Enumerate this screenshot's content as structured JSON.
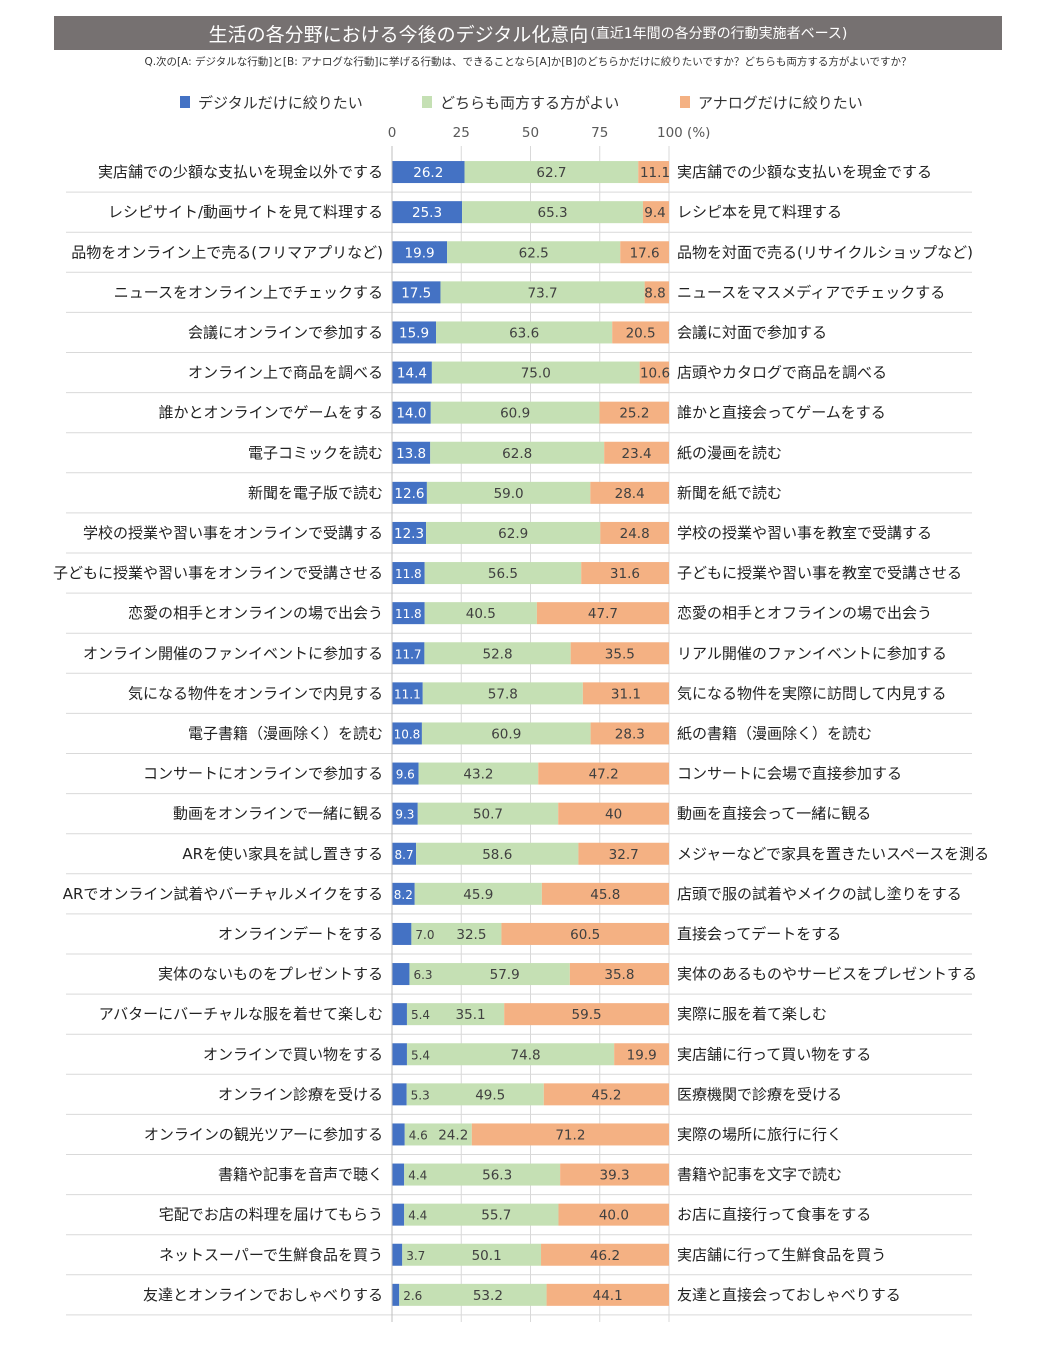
{
  "title": "生活の各分野における今後のデジタル化意向",
  "subtitle": "(直近1年間の各分野の行動実施者ベース)",
  "question": "Q.次の[A: デジタルな行動]と[B: アナログな行動]に挙げる行動は、できることなら[A]か[B]のどちらかだけに絞りたいですか？どちらも両方する方がよいですか？",
  "colors": {
    "digital": "#4472C4",
    "both": "#C5E0B4",
    "analog": "#F4B183",
    "title_bg": "#767171"
  },
  "legend": [
    {
      "label": "デジタルだけに絞りたい",
      "color": "#4472C4"
    },
    {
      "label": "どちらも両方する方がよい",
      "color": "#C5E0B4"
    },
    {
      "label": "アナログだけに絞りたい",
      "color": "#F4B183"
    }
  ],
  "chart_data": {
    "type": "bar",
    "stacked": true,
    "orientation": "horizontal",
    "title": "生活の各分野における今後のデジタル化意向",
    "xlim": [
      0,
      100
    ],
    "x_ticks": [
      "0",
      "25",
      "50",
      "75",
      "100 (%)"
    ],
    "series_names": [
      "デジタルだけに絞りたい",
      "どちらも両方する方がよい",
      "アナログだけに絞りたい"
    ],
    "rows": [
      {
        "a": "実店舗での少額な支払いを現金以外でする",
        "b": "実店舗での少額な支払いを現金でする",
        "d": "26.2",
        "m": "62.7",
        "n": "11.1"
      },
      {
        "a": "レシピサイト/動画サイトを見て料理する",
        "b": "レシピ本を見て料理する",
        "d": "25.3",
        "m": "65.3",
        "n": "9.4"
      },
      {
        "a": "品物をオンライン上で売る(フリマアプリなど)",
        "b": "品物を対面で売る(リサイクルショップなど)",
        "d": "19.9",
        "m": "62.5",
        "n": "17.6"
      },
      {
        "a": "ニュースをオンライン上でチェックする",
        "b": "ニュースをマスメディアでチェックする",
        "d": "17.5",
        "m": "73.7",
        "n": "8.8"
      },
      {
        "a": "会議にオンラインで参加する",
        "b": "会議に対面で参加する",
        "d": "15.9",
        "m": "63.6",
        "n": "20.5"
      },
      {
        "a": "オンライン上で商品を調べる",
        "b": "店頭やカタログで商品を調べる",
        "d": "14.4",
        "m": "75.0",
        "n": "10.6"
      },
      {
        "a": "誰かとオンラインでゲームをする",
        "b": "誰かと直接会ってゲームをする",
        "d": "14.0",
        "m": "60.9",
        "n": "25.2"
      },
      {
        "a": "電子コミックを読む",
        "b": "紙の漫画を読む",
        "d": "13.8",
        "m": "62.8",
        "n": "23.4"
      },
      {
        "a": "新聞を電子版で読む",
        "b": "新聞を紙で読む",
        "d": "12.6",
        "m": "59.0",
        "n": "28.4"
      },
      {
        "a": "学校の授業や習い事をオンラインで受講する",
        "b": "学校の授業や習い事を教室で受講する",
        "d": "12.3",
        "m": "62.9",
        "n": "24.8"
      },
      {
        "a": "子どもに授業や習い事をオンラインで受講させる",
        "b": "子どもに授業や習い事を教室で受講させる",
        "d": "11.8",
        "m": "56.5",
        "n": "31.6"
      },
      {
        "a": "恋愛の相手とオンラインの場で出会う",
        "b": "恋愛の相手とオフラインの場で出会う",
        "d": "11.8",
        "m": "40.5",
        "n": "47.7"
      },
      {
        "a": "オンライン開催のファンイベントに参加する",
        "b": "リアル開催のファンイベントに参加する",
        "d": "11.7",
        "m": "52.8",
        "n": "35.5"
      },
      {
        "a": "気になる物件をオンラインで内見する",
        "b": "気になる物件を実際に訪問して内見する",
        "d": "11.1",
        "m": "57.8",
        "n": "31.1"
      },
      {
        "a": "電子書籍（漫画除く）を読む",
        "b": "紙の書籍（漫画除く）を読む",
        "d": "10.8",
        "m": "60.9",
        "n": "28.3"
      },
      {
        "a": "コンサートにオンラインで参加する",
        "b": "コンサートに会場で直接参加する",
        "d": "9.6",
        "m": "43.2",
        "n": "47.2"
      },
      {
        "a": "動画をオンラインで一緒に観る",
        "b": "動画を直接会って一緒に観る",
        "d": "9.3",
        "m": "50.7",
        "n": "40"
      },
      {
        "a": "ARを使い家具を試し置きする",
        "b": "メジャーなどで家具を置きたいスペースを測る",
        "d": "8.7",
        "m": "58.6",
        "n": "32.7"
      },
      {
        "a": "ARでオンライン試着やバーチャルメイクをする",
        "b": "店頭で服の試着やメイクの試し塗りをする",
        "d": "8.2",
        "m": "45.9",
        "n": "45.8"
      },
      {
        "a": "オンラインデートをする",
        "b": "直接会ってデートをする",
        "d": "7.0",
        "m": "32.5",
        "n": "60.5"
      },
      {
        "a": "実体のないものをプレゼントする",
        "b": "実体のあるものやサービスをプレゼントする",
        "d": "6.3",
        "m": "57.9",
        "n": "35.8"
      },
      {
        "a": "アバターにバーチャルな服を着せて楽しむ",
        "b": "実際に服を着て楽しむ",
        "d": "5.4",
        "m": "35.1",
        "n": "59.5"
      },
      {
        "a": "オンラインで買い物をする",
        "b": "実店舗に行って買い物をする",
        "d": "5.4",
        "m": "74.8",
        "n": "19.9"
      },
      {
        "a": "オンライン診療を受ける",
        "b": "医療機関で診療を受ける",
        "d": "5.3",
        "m": "49.5",
        "n": "45.2"
      },
      {
        "a": "オンラインの観光ツアーに参加する",
        "b": "実際の場所に旅行に行く",
        "d": "4.6",
        "m": "24.2",
        "n": "71.2"
      },
      {
        "a": "書籍や記事を音声で聴く",
        "b": "書籍や記事を文字で読む",
        "d": "4.4",
        "m": "56.3",
        "n": "39.3"
      },
      {
        "a": "宅配でお店の料理を届けてもらう",
        "b": "お店に直接行って食事をする",
        "d": "4.4",
        "m": "55.7",
        "n": "40.0"
      },
      {
        "a": "ネットスーパーで生鮮食品を買う",
        "b": "実店舗に行って生鮮食品を買う",
        "d": "3.7",
        "m": "50.1",
        "n": "46.2"
      },
      {
        "a": "友達とオンラインでおしゃべりする",
        "b": "友達と直接会っておしゃべりする",
        "d": "2.6",
        "m": "53.2",
        "n": "44.1"
      }
    ]
  }
}
